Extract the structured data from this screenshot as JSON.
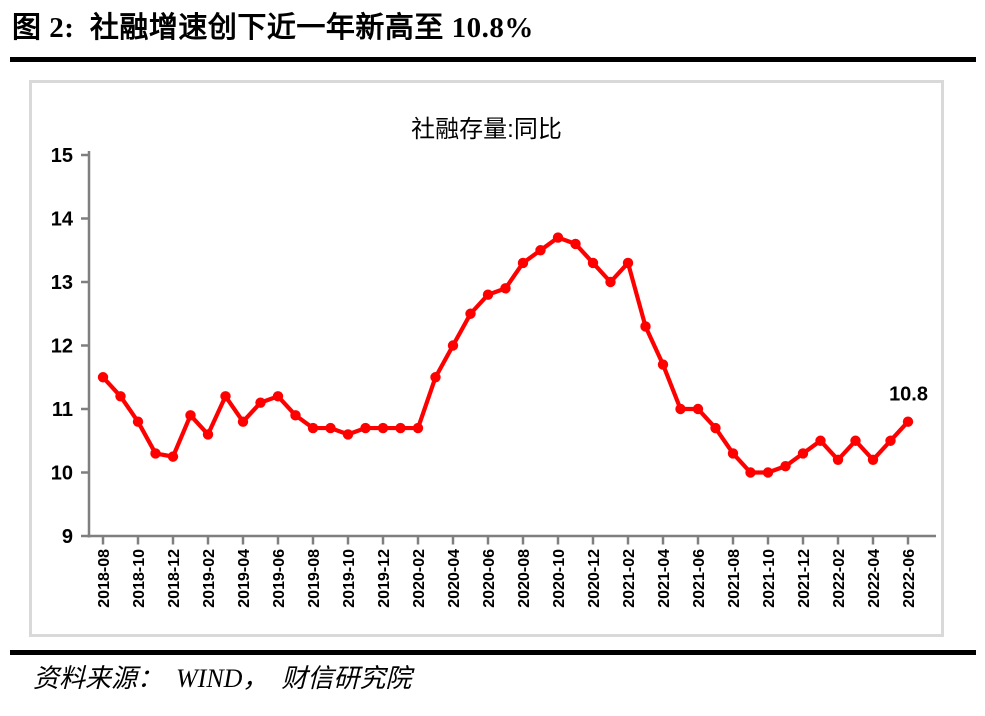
{
  "figure": {
    "title": "图 2:  社融增速创下近一年新高至 10.8%",
    "source": "资料来源：  WIND，  财信研究院"
  },
  "chart_data": {
    "type": "line",
    "title": "社融存量:同比",
    "series_name": "社融存量:同比",
    "x": [
      "2018-08",
      "2018-09",
      "2018-10",
      "2018-11",
      "2018-12",
      "2019-01",
      "2019-02",
      "2019-03",
      "2019-04",
      "2019-05",
      "2019-06",
      "2019-07",
      "2019-08",
      "2019-09",
      "2019-10",
      "2019-11",
      "2019-12",
      "2020-01",
      "2020-02",
      "2020-03",
      "2020-04",
      "2020-05",
      "2020-06",
      "2020-07",
      "2020-08",
      "2020-09",
      "2020-10",
      "2020-11",
      "2020-12",
      "2021-01",
      "2021-02",
      "2021-03",
      "2021-04",
      "2021-05",
      "2021-06",
      "2021-07",
      "2021-08",
      "2021-09",
      "2021-10",
      "2021-11",
      "2021-12",
      "2022-01",
      "2022-02",
      "2022-03",
      "2022-04",
      "2022-05",
      "2022-06"
    ],
    "values": [
      11.5,
      11.2,
      10.8,
      10.3,
      10.25,
      10.9,
      10.6,
      11.2,
      10.8,
      11.1,
      11.2,
      10.9,
      10.7,
      10.7,
      10.6,
      10.7,
      10.7,
      10.7,
      10.7,
      11.5,
      12.0,
      12.5,
      12.8,
      12.9,
      13.3,
      13.5,
      13.7,
      13.6,
      13.3,
      13.0,
      13.3,
      12.3,
      11.7,
      11.0,
      11.0,
      10.7,
      10.3,
      10.0,
      10.0,
      10.1,
      10.3,
      10.5,
      10.2,
      10.5,
      10.2,
      10.5,
      10.8
    ],
    "xlabel": "",
    "ylabel": "",
    "ylim": [
      9,
      15
    ],
    "yticks": [
      9,
      10,
      11,
      12,
      13,
      14,
      15
    ],
    "xtick_label_every": 2,
    "grid": false,
    "markers": true,
    "end_label": {
      "text": "10.8",
      "color": "#ff0000"
    },
    "line_color": "#ff0000",
    "axis_color": "#7f7f7f",
    "frame_color": "#d9d9d9",
    "label_color": "#000000"
  }
}
